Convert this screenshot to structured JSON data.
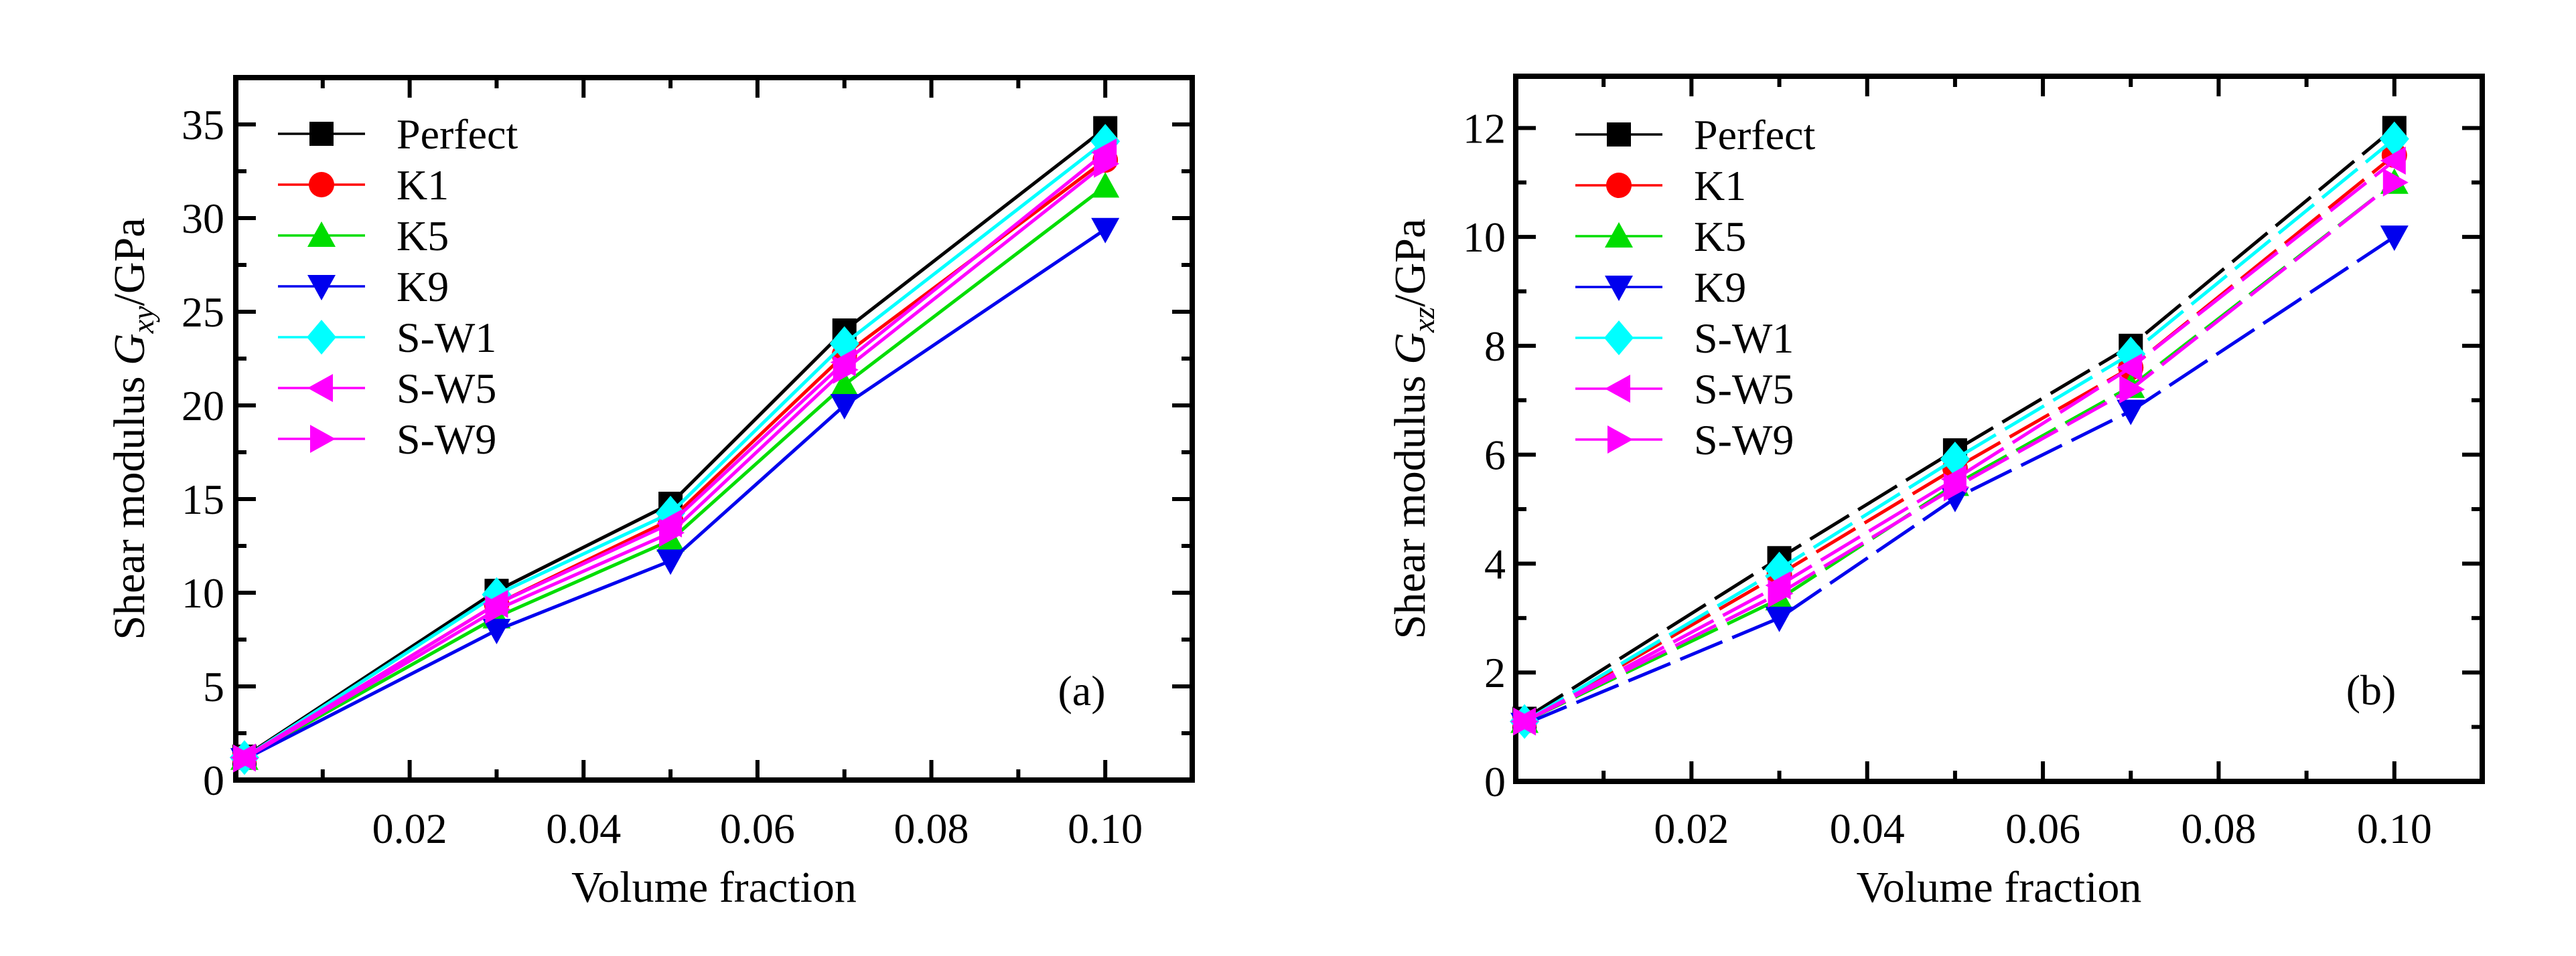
{
  "figure": {
    "background": "#ffffff",
    "x_axis_title": "Volume fraction",
    "annotations": [
      "(a)",
      "(b)"
    ]
  },
  "chart_data": [
    {
      "type": "line",
      "panel": "a",
      "annotation": "(a)",
      "xlabel": "Volume fraction",
      "ylabel": "Shear modulus G_xy/GPa",
      "ylabel_parts": {
        "prefix": "Shear modulus ",
        "symbol": "G",
        "subscript": "xy",
        "suffix": "/GPa"
      },
      "xlim": [
        0,
        0.11
      ],
      "ylim": [
        0,
        37.5
      ],
      "x_major_ticks": [
        0.02,
        0.04,
        0.06,
        0.08,
        0.1
      ],
      "x_minor_ticks": [
        0.01,
        0.03,
        0.05,
        0.07,
        0.09
      ],
      "y_major_ticks": [
        0,
        5,
        10,
        15,
        20,
        25,
        30,
        35
      ],
      "y_minor_ticks": [
        2.5,
        7.5,
        12.5,
        17.5,
        22.5,
        27.5,
        32.5,
        37.5
      ],
      "x_tick_labels": [
        "0.02",
        "0.04",
        "0.06",
        "0.08",
        "0.10"
      ],
      "y_tick_labels": [
        "0",
        "5",
        "10",
        "15",
        "20",
        "25",
        "30",
        "35"
      ],
      "line_style": "solid",
      "legend_position": "upper-left",
      "grid": false,
      "x": [
        0.001,
        0.03,
        0.05,
        0.07,
        0.1
      ],
      "series": [
        {
          "name": "Perfect",
          "marker": "square",
          "color": "#000000",
          "values": [
            1.25,
            10.1,
            14.75,
            24.0,
            34.8
          ]
        },
        {
          "name": "K1",
          "marker": "circle",
          "color": "#ff0000",
          "values": [
            1.2,
            9.4,
            13.9,
            22.7,
            33.1
          ]
        },
        {
          "name": "K5",
          "marker": "triangle-up",
          "color": "#00dd00",
          "values": [
            1.15,
            8.7,
            12.8,
            21.1,
            31.7
          ]
        },
        {
          "name": "K9",
          "marker": "triangle-down",
          "color": "#0000ee",
          "values": [
            1.1,
            8.0,
            11.7,
            20.0,
            29.4
          ]
        },
        {
          "name": "S-W1",
          "marker": "diamond",
          "color": "#00ffff",
          "values": [
            1.2,
            9.9,
            14.25,
            23.3,
            34.1
          ]
        },
        {
          "name": "S-W5",
          "marker": "triangle-left",
          "color": "#ff00ff",
          "values": [
            1.2,
            9.4,
            13.7,
            22.3,
            33.5
          ]
        },
        {
          "name": "S-W9",
          "marker": "triangle-right",
          "color": "#ff00ff",
          "values": [
            1.15,
            9.1,
            13.2,
            21.9,
            32.9
          ]
        }
      ]
    },
    {
      "type": "line",
      "panel": "b",
      "annotation": "(b)",
      "xlabel": "Volume fraction",
      "ylabel": "Shear modulus G_xz/GPa",
      "ylabel_parts": {
        "prefix": "Shear modulus ",
        "symbol": "G",
        "subscript": "xz",
        "suffix": "/GPa"
      },
      "xlim": [
        0,
        0.11
      ],
      "ylim": [
        0,
        12.95
      ],
      "x_major_ticks": [
        0.02,
        0.04,
        0.06,
        0.08,
        0.1
      ],
      "x_minor_ticks": [
        0.01,
        0.03,
        0.05,
        0.07,
        0.09
      ],
      "y_major_ticks": [
        0,
        2,
        4,
        6,
        8,
        10,
        12
      ],
      "y_minor_ticks": [
        1,
        3,
        5,
        7,
        9,
        11
      ],
      "x_tick_labels": [
        "0.02",
        "0.04",
        "0.06",
        "0.08",
        "0.10"
      ],
      "y_tick_labels": [
        "0",
        "2",
        "4",
        "6",
        "8",
        "10",
        "12"
      ],
      "line_style": "dashed",
      "legend_position": "upper-left",
      "grid": false,
      "x": [
        0.001,
        0.03,
        0.05,
        0.07,
        0.1
      ],
      "series": [
        {
          "name": "Perfect",
          "marker": "square",
          "color": "#000000",
          "values": [
            1.15,
            4.1,
            6.08,
            8.0,
            12.0
          ]
        },
        {
          "name": "K1",
          "marker": "circle",
          "color": "#ff0000",
          "values": [
            1.1,
            3.8,
            5.75,
            7.6,
            11.5
          ]
        },
        {
          "name": "K5",
          "marker": "triangle-up",
          "color": "#00dd00",
          "values": [
            1.1,
            3.35,
            5.45,
            7.25,
            11.0
          ]
        },
        {
          "name": "K9",
          "marker": "triangle-down",
          "color": "#0000ee",
          "values": [
            1.05,
            3.0,
            5.2,
            6.8,
            10.0
          ]
        },
        {
          "name": "S-W1",
          "marker": "diamond",
          "color": "#00ffff",
          "values": [
            1.1,
            3.9,
            5.92,
            7.85,
            11.8
          ]
        },
        {
          "name": "S-W5",
          "marker": "triangle-left",
          "color": "#ff00ff",
          "values": [
            1.1,
            3.6,
            5.55,
            7.6,
            11.4
          ]
        },
        {
          "name": "S-W9",
          "marker": "triangle-right",
          "color": "#ff00ff",
          "values": [
            1.1,
            3.45,
            5.4,
            7.2,
            11.0
          ]
        }
      ]
    }
  ]
}
